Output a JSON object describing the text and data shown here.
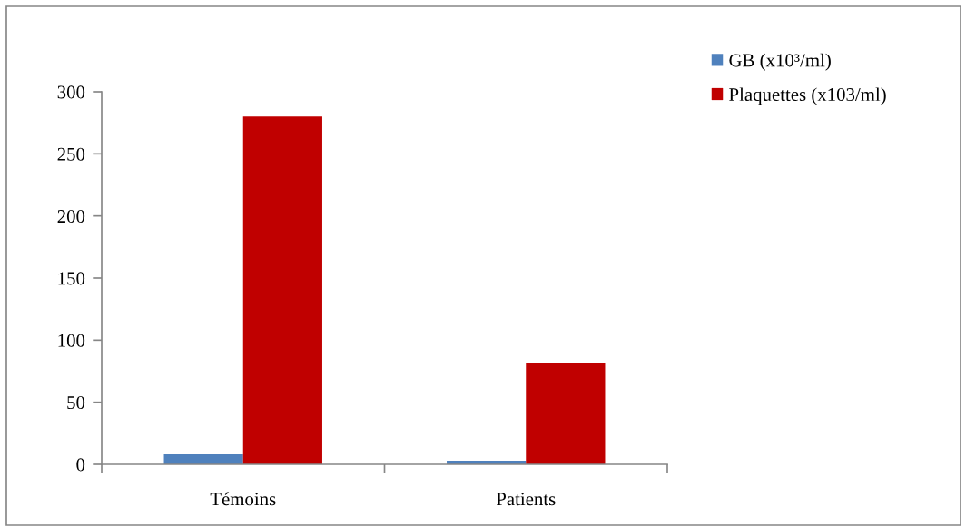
{
  "chart_data": {
    "type": "bar",
    "categories": [
      "Témoins",
      "Patients"
    ],
    "series": [
      {
        "name": "GB (x10³/ml)",
        "color": "#4f81bd",
        "values": [
          8,
          3
        ]
      },
      {
        "name": "Plaquettes (x103/ml)",
        "color": "#c00000",
        "values": [
          280,
          82
        ]
      }
    ],
    "ylim": [
      0,
      300
    ],
    "yticks": [
      0,
      50,
      100,
      150,
      200,
      250,
      300
    ],
    "legend": "top right"
  }
}
